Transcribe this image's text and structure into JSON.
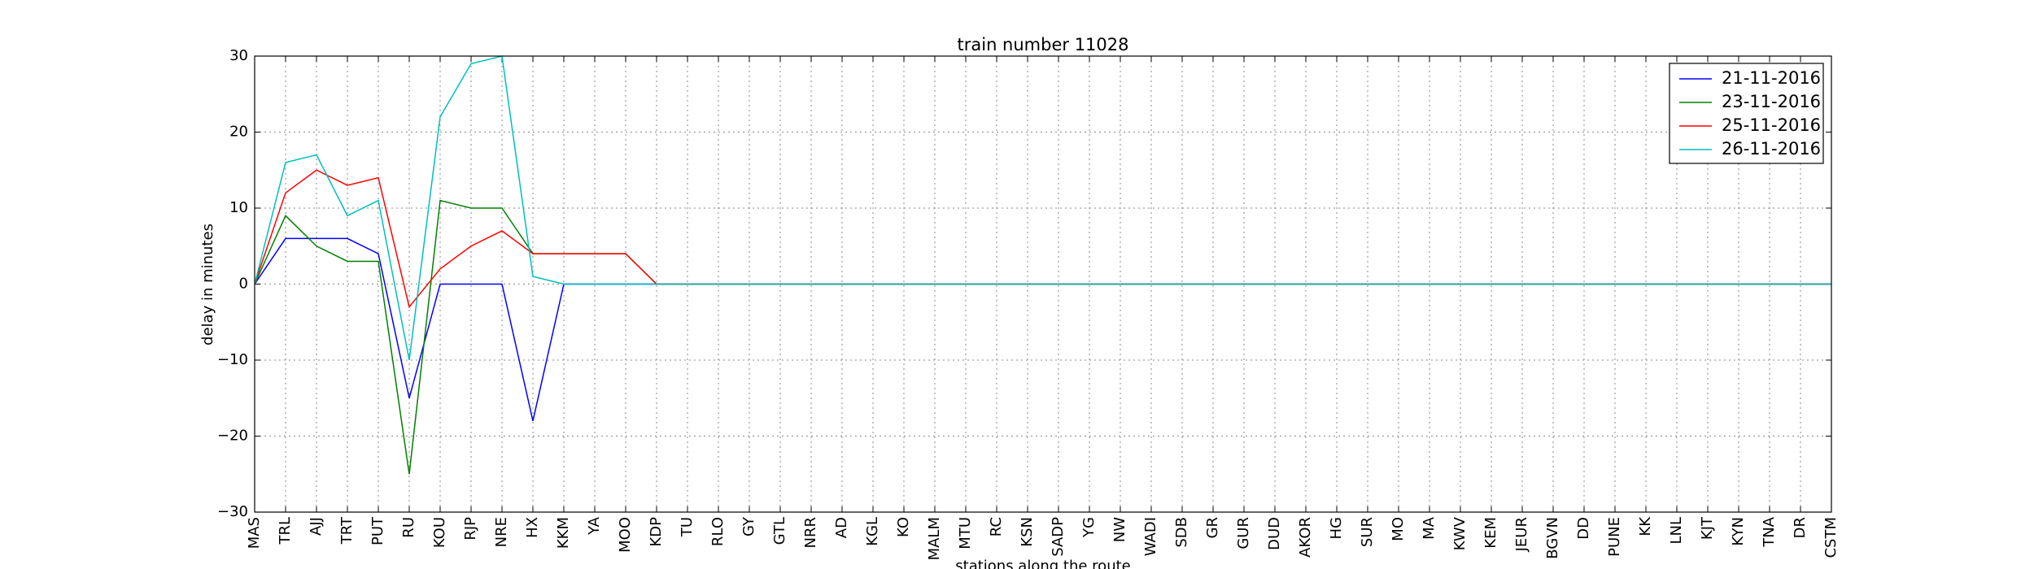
{
  "chart_data": {
    "type": "line",
    "title": "train number 11028",
    "x_label": "stations along the route",
    "y_label": "delay in minutes",
    "categories": [
      "MAS",
      "TRL",
      "AJJ",
      "TRT",
      "PUT",
      "RU",
      "KOU",
      "RJP",
      "NRE",
      "HX",
      "KKM",
      "YA",
      "MOO",
      "KDP",
      "TU",
      "RLO",
      "GY",
      "GTL",
      "NRR",
      "AD",
      "KGL",
      "KO",
      "MALM",
      "MTU",
      "RC",
      "KSN",
      "SADP",
      "YG",
      "NW",
      "WADI",
      "SDB",
      "GR",
      "GUR",
      "DUD",
      "AKOR",
      "HG",
      "SUR",
      "MO",
      "MA",
      "KWV",
      "KEM",
      "JEUR",
      "BGVN",
      "DD",
      "PUNE",
      "KK",
      "LNL",
      "KJT",
      "KYN",
      "TNA",
      "DR",
      "CSTM"
    ],
    "series": [
      {
        "name": "21-11-2016",
        "color": "#0000ff",
        "values": [
          0,
          6,
          6,
          6,
          4,
          -15,
          0,
          0,
          0,
          -18,
          0,
          0,
          0,
          0,
          0,
          0,
          0,
          0,
          0,
          0,
          0,
          0,
          0,
          0,
          0,
          0,
          0,
          0,
          0,
          0,
          0,
          0,
          0,
          0,
          0,
          0,
          0,
          0,
          0,
          0,
          0,
          0,
          0,
          0,
          0,
          0,
          0,
          0,
          0,
          0,
          0,
          0
        ]
      },
      {
        "name": "23-11-2016",
        "color": "#008000",
        "values": [
          0,
          9,
          5,
          3,
          3,
          -25,
          11,
          10,
          10,
          4,
          4,
          4,
          4,
          0,
          0,
          0,
          0,
          0,
          0,
          0,
          0,
          0,
          0,
          0,
          0,
          0,
          0,
          0,
          0,
          0,
          0,
          0,
          0,
          0,
          0,
          0,
          0,
          0,
          0,
          0,
          0,
          0,
          0,
          0,
          0,
          0,
          0,
          0,
          0,
          0,
          0,
          0
        ]
      },
      {
        "name": "25-11-2016",
        "color": "#ff0000",
        "values": [
          0,
          12,
          15,
          13,
          14,
          -3,
          2,
          5,
          7,
          4,
          4,
          4,
          4,
          0,
          0,
          0,
          0,
          0,
          0,
          0,
          0,
          0,
          0,
          0,
          0,
          0,
          0,
          0,
          0,
          0,
          0,
          0,
          0,
          0,
          0,
          0,
          0,
          0,
          0,
          0,
          0,
          0,
          0,
          0,
          0,
          0,
          0,
          0,
          0,
          0,
          0,
          0
        ]
      },
      {
        "name": "26-11-2016",
        "color": "#00bfbf",
        "values": [
          0,
          16,
          17,
          9,
          11,
          -10,
          22,
          29,
          30,
          1,
          0,
          0,
          0,
          0,
          0,
          0,
          0,
          0,
          0,
          0,
          0,
          0,
          0,
          0,
          0,
          0,
          0,
          0,
          0,
          0,
          0,
          0,
          0,
          0,
          0,
          0,
          0,
          0,
          0,
          0,
          0,
          0,
          0,
          0,
          0,
          0,
          0,
          0,
          0,
          0,
          0,
          0
        ]
      }
    ],
    "ylim": [
      -30,
      30
    ],
    "yticks": [
      {
        "value": -30,
        "label": "−30"
      },
      {
        "value": -20,
        "label": "−20"
      },
      {
        "value": -10,
        "label": "−10"
      },
      0,
      10,
      20,
      30
    ],
    "grid": true,
    "legend": "upper right"
  }
}
